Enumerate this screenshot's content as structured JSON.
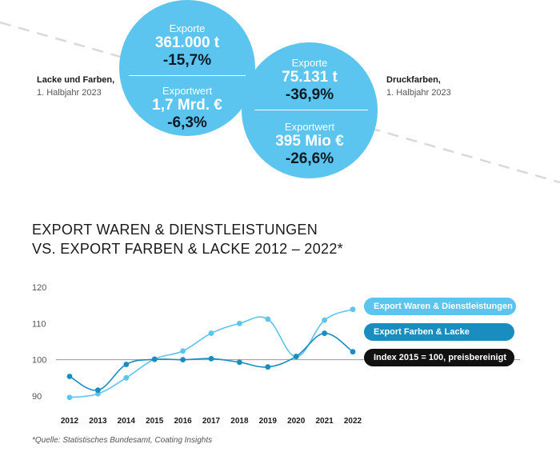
{
  "colors": {
    "light_blue": "#5bc4ef",
    "dark_blue": "#1a8dc0",
    "black": "#111111",
    "dashed_line": "#d9d9d9",
    "index_line": "#9a9a9a"
  },
  "left_block": {
    "title": "Lacke und Farben,",
    "subtitle": "1. Halbjahr 2023",
    "circle": {
      "export_label": "Exporte",
      "export_value": "361.000 t",
      "export_change": "-15,7%",
      "value_label": "Exportwert",
      "value_value": "1,7 Mrd. €",
      "value_change": "-6,3%"
    }
  },
  "right_block": {
    "title": "Druckfarben,",
    "subtitle": "1. Halbjahr 2023",
    "circle": {
      "export_label": "Exporte",
      "export_value": "75.131 t",
      "export_change": "-36,9%",
      "value_label": "Exportwert",
      "value_value": "395 Mio €",
      "value_change": "-26,6%"
    }
  },
  "chart_title": {
    "line1": "EXPORT WAREN & DIENSTLEISTUNGEN",
    "line2": "VS. EXPORT FARBEN & LACKE 2012 – 2022*"
  },
  "footnote": "*Quelle: Statistisches Bundesamt, Coating Insights",
  "chart_data": {
    "type": "line",
    "title": "EXPORT WAREN & DIENSTLEISTUNGEN VS. EXPORT FARBEN & LACKE 2012 – 2022*",
    "xlabel": "",
    "ylabel": "",
    "categories": [
      "2012",
      "2013",
      "2014",
      "2015",
      "2016",
      "2017",
      "2018",
      "2019",
      "2020",
      "2021",
      "2022"
    ],
    "ylim": [
      88,
      122
    ],
    "yticks": [
      90,
      100,
      110,
      120
    ],
    "grid": false,
    "reference_line": {
      "value": 100,
      "label": "Index 2015 = 100, preisbereinigt"
    },
    "series": [
      {
        "name": "Export Waren & Dienstleistungen",
        "color": "#5bc4ef",
        "values": [
          89.6,
          90.6,
          95.0,
          100.2,
          102.4,
          107.3,
          110.0,
          111.2,
          100.8,
          110.9,
          113.9
        ]
      },
      {
        "name": "Export Farben & Lacke",
        "color": "#1a8dc0",
        "values": [
          95.4,
          91.6,
          98.7,
          100.1,
          100.0,
          100.3,
          99.3,
          98.0,
          100.9,
          107.3,
          102.2
        ]
      }
    ],
    "legend_position": "right"
  }
}
